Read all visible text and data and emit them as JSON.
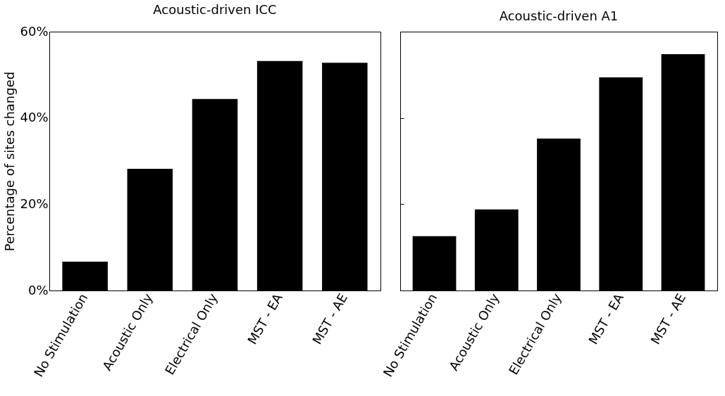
{
  "chart_data": [
    {
      "type": "bar",
      "title": "Acoustic-driven ICC",
      "ylabel": "Percentage of sites changed",
      "categories": [
        "No Stimulation",
        "Acoustic Only",
        "Electrical Only",
        "MST - EA",
        "MST - AE"
      ],
      "values": [
        6.7,
        28.2,
        44.4,
        53.2,
        52.8
      ],
      "color": "#000000",
      "ylim": [
        0,
        60
      ],
      "yticks": [
        {
          "value": 0,
          "label": "0%"
        },
        {
          "value": 20,
          "label": "20%"
        },
        {
          "value": 40,
          "label": "40%"
        },
        {
          "value": 60,
          "label": "60%"
        }
      ]
    },
    {
      "type": "bar",
      "title": "Acoustic-driven A1",
      "categories": [
        "No Stimulation",
        "Acoustic Only",
        "Electrical Only",
        "MST - EA",
        "MST - AE"
      ],
      "values": [
        12.6,
        18.8,
        35.2,
        49.4,
        54.8
      ],
      "color": "#000000",
      "ylim": [
        0,
        60
      ],
      "yticks": [
        {
          "value": 0,
          "label": null
        },
        {
          "value": 20,
          "label": null
        },
        {
          "value": 40,
          "label": null
        },
        {
          "value": 60,
          "label": null
        }
      ],
      "tick_labels": "x"
    }
  ]
}
